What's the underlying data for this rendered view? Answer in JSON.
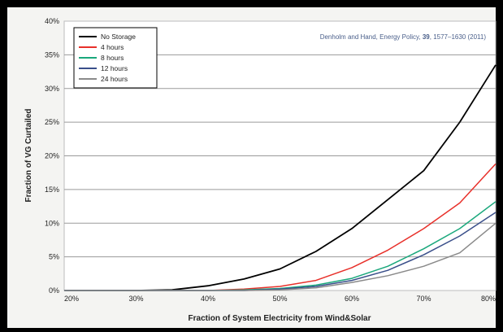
{
  "chart_data": {
    "type": "line",
    "title": "",
    "xlabel": "Fraction of System Electricity from Wind&Solar",
    "ylabel": "Fraction of VG Curtailed",
    "annotation": {
      "text_before": "Denholm and Hand, Energy Policy, ",
      "volume": "39",
      "text_after": ", 1577–1630 (2011)"
    },
    "xlim": [
      20,
      80
    ],
    "ylim": [
      0,
      40
    ],
    "x_ticks": [
      "20%",
      "30%",
      "40%",
      "50%",
      "60%",
      "70%",
      "80%"
    ],
    "y_ticks": [
      "0%",
      "5%",
      "10%",
      "15%",
      "20%",
      "25%",
      "30%",
      "35%",
      "40%"
    ],
    "grid": "horizontal",
    "legend_position": "top-left",
    "x": [
      20,
      25,
      30,
      35,
      40,
      45,
      50,
      55,
      60,
      65,
      70,
      75,
      80
    ],
    "series": [
      {
        "name": "No Storage",
        "color": "#000000",
        "values": [
          0,
          0,
          0,
          0.1,
          0.7,
          1.7,
          3.2,
          5.8,
          9.2,
          13.5,
          17.8,
          25.0,
          33.5
        ]
      },
      {
        "name": "4 hours",
        "color": "#e8302a",
        "values": [
          0,
          0,
          0,
          0,
          0,
          0.2,
          0.6,
          1.5,
          3.4,
          6.0,
          9.2,
          13.0,
          18.8
        ]
      },
      {
        "name": "8 hours",
        "color": "#1aa87c",
        "values": [
          0,
          0,
          0,
          0,
          0,
          0.1,
          0.3,
          0.8,
          1.8,
          3.6,
          6.2,
          9.2,
          13.2
        ]
      },
      {
        "name": "12 hours",
        "color": "#3a4f8a",
        "values": [
          0,
          0,
          0,
          0,
          0,
          0,
          0.2,
          0.6,
          1.5,
          3.0,
          5.3,
          8.1,
          11.6
        ]
      },
      {
        "name": "24 hours",
        "color": "#8a8a8a",
        "values": [
          0,
          0,
          0,
          0,
          0,
          0,
          0.1,
          0.4,
          1.2,
          2.2,
          3.6,
          5.6,
          10.0
        ]
      }
    ]
  }
}
